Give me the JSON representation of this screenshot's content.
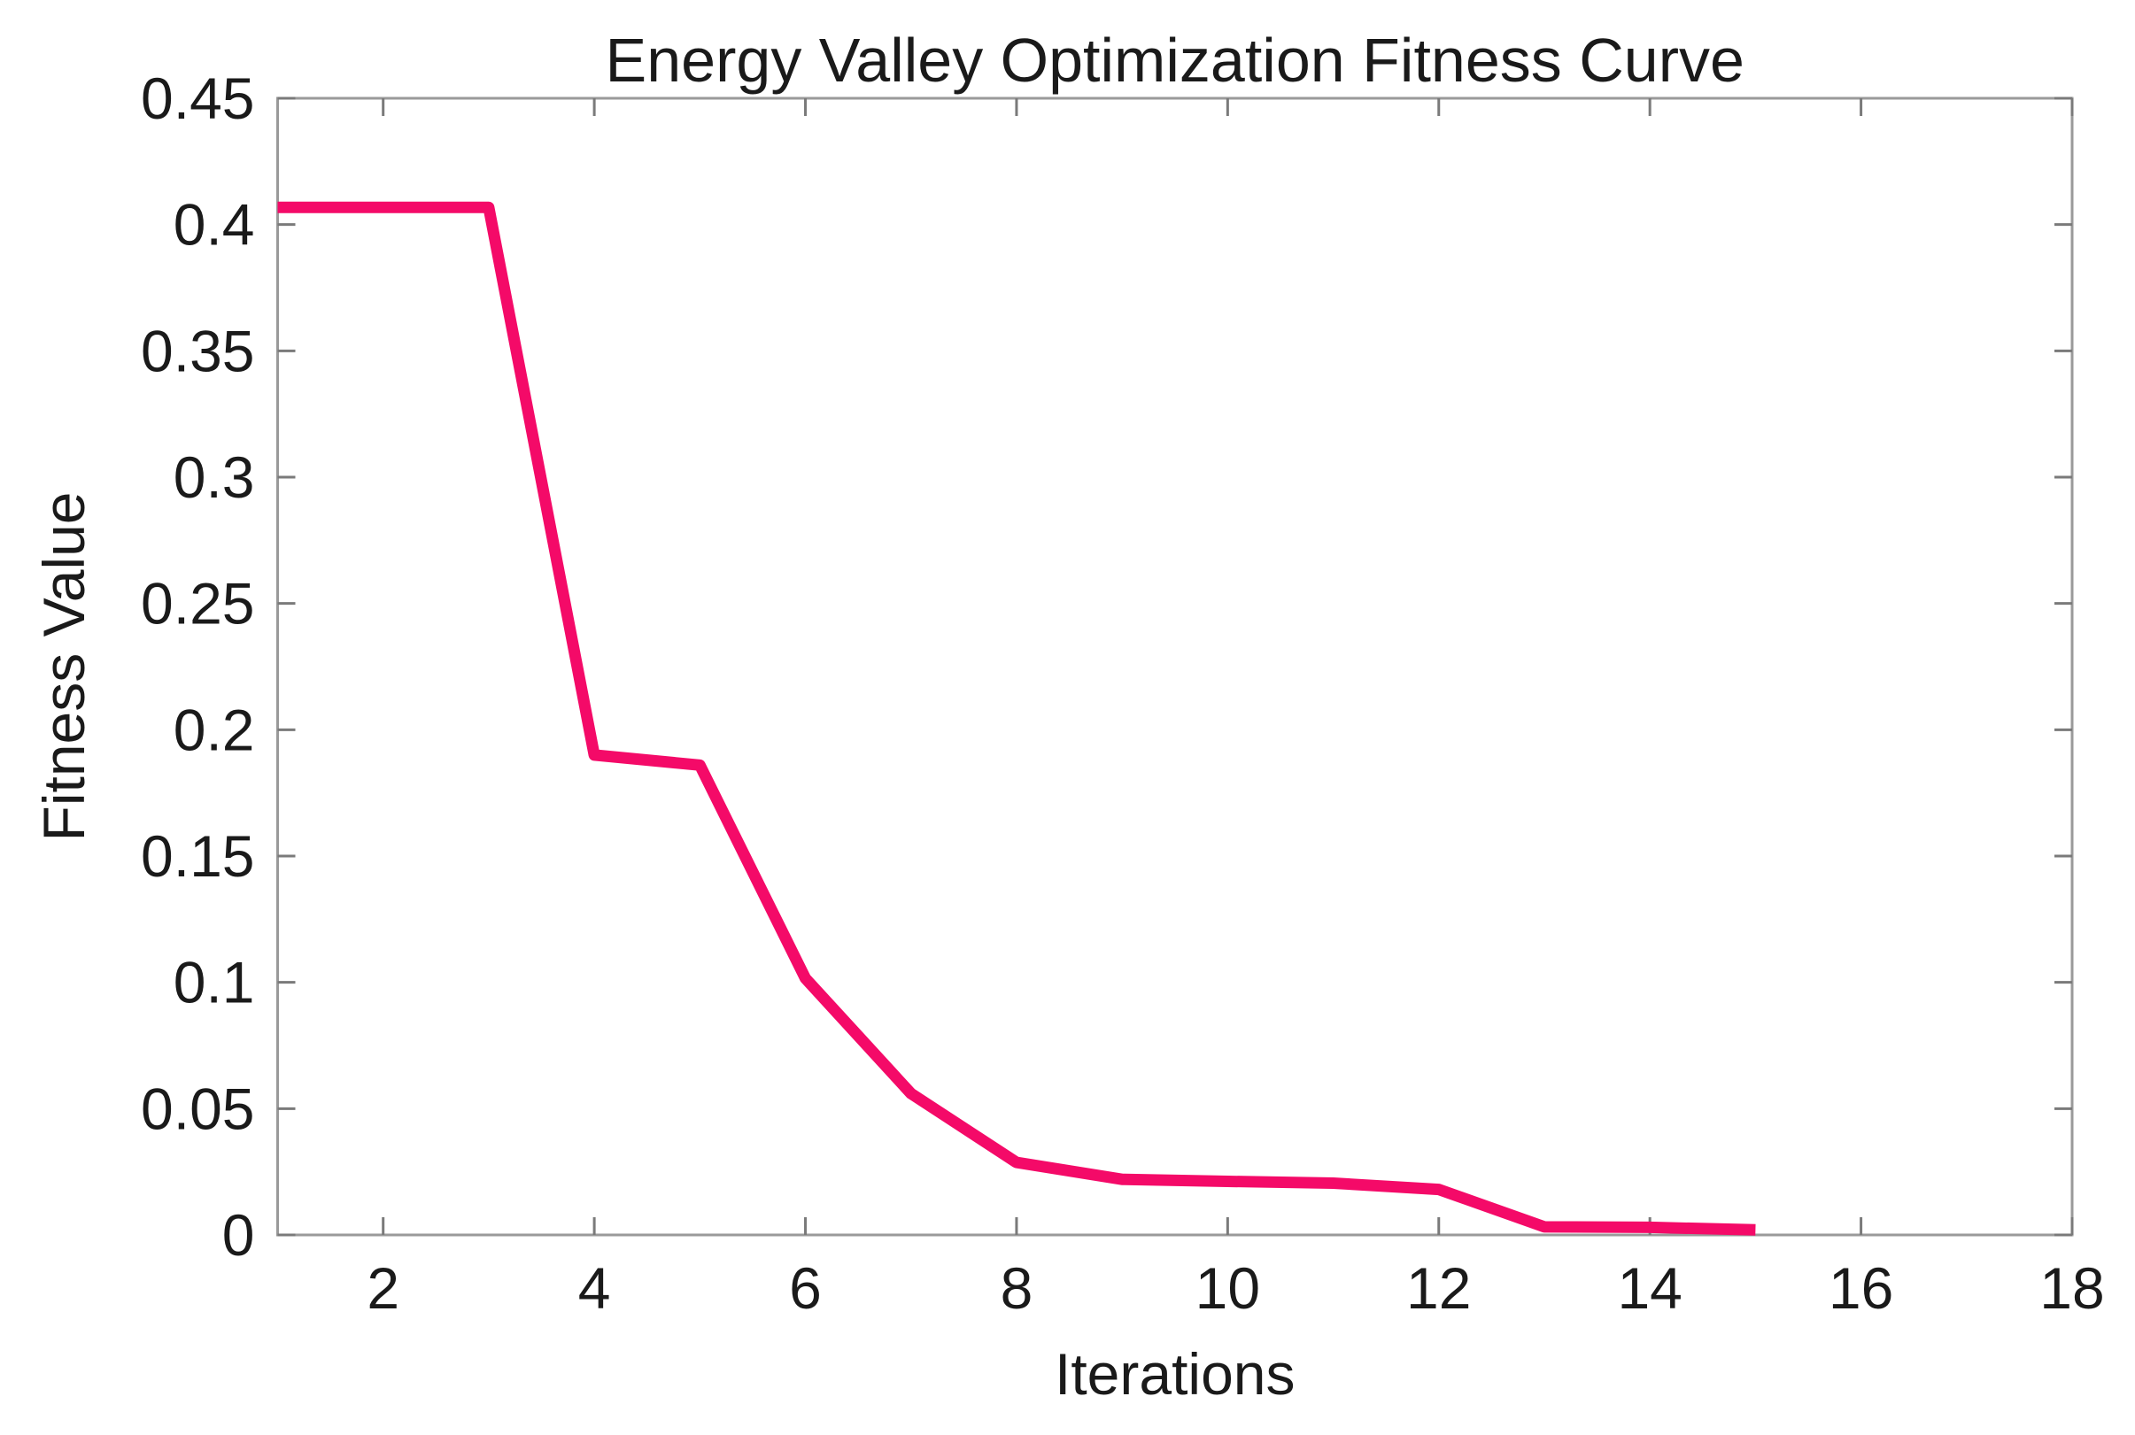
{
  "chart_data": {
    "type": "line",
    "title": "Energy Valley Optimization Fitness Curve",
    "xlabel": "Iterations",
    "ylabel": "Fitness Value",
    "series": [
      {
        "name": "fitness-curve",
        "x": [
          1,
          2,
          3,
          4,
          5,
          6,
          7,
          8,
          9,
          10,
          11,
          12,
          13,
          14,
          15
        ],
        "y": [
          0.4068,
          0.4068,
          0.4068,
          0.19,
          0.186,
          0.1016,
          0.056,
          0.0287,
          0.022,
          0.0212,
          0.0205,
          0.018,
          0.0032,
          0.003,
          0.002
        ]
      }
    ],
    "xlim": [
      1,
      18
    ],
    "ylim": [
      0,
      0.45
    ],
    "x_tick_values": [
      2,
      4,
      6,
      8,
      10,
      12,
      14,
      16,
      18
    ],
    "x_tick_labels": [
      "2",
      "4",
      "6",
      "8",
      "10",
      "12",
      "14",
      "16",
      "18"
    ],
    "y_tick_values": [
      0,
      0.05,
      0.1,
      0.15,
      0.2,
      0.25,
      0.3,
      0.35,
      0.4,
      0.45
    ],
    "y_tick_labels": [
      "0",
      "0.05",
      "0.1",
      "0.15",
      "0.2",
      "0.25",
      "0.3",
      "0.35",
      "0.4",
      "0.45"
    ],
    "line_color": "#F40A68",
    "grid": "off",
    "legend": "none"
  }
}
